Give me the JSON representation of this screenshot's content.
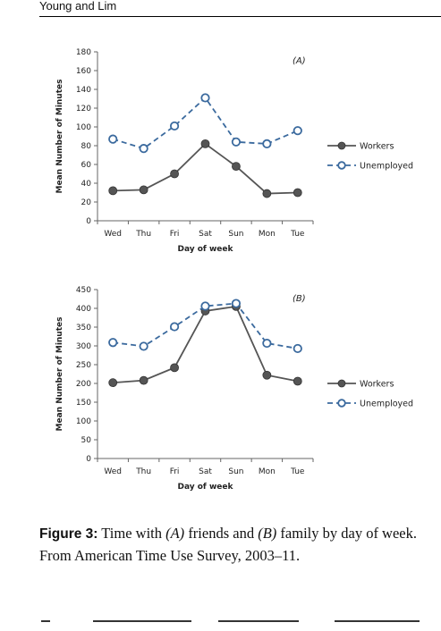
{
  "header": {
    "running_title": "Young and Lim"
  },
  "chart_data": [
    {
      "type": "line",
      "panel_label": "(A)",
      "categories": [
        "Wed",
        "Thu",
        "Fri",
        "Sat",
        "Sun",
        "Mon",
        "Tue"
      ],
      "series": [
        {
          "name": "Workers",
          "values": [
            32,
            33,
            50,
            82,
            58,
            29,
            30
          ],
          "color": "#555555",
          "marker": "filled-circle",
          "line": "solid"
        },
        {
          "name": "Unemployed",
          "values": [
            87,
            77,
            101,
            131,
            84,
            82,
            96
          ],
          "color": "#3b6a9e",
          "marker": "open-circle",
          "line": "dashed"
        }
      ],
      "xlabel": "Day of week",
      "ylabel": "Mean Number of Minutes",
      "ylim": [
        0,
        180
      ],
      "yticks": [
        0,
        20,
        40,
        60,
        80,
        100,
        120,
        140,
        160,
        180
      ],
      "grid": false,
      "legend": "right"
    },
    {
      "type": "line",
      "panel_label": "(B)",
      "categories": [
        "Wed",
        "Thu",
        "Fri",
        "Sat",
        "Sun",
        "Mon",
        "Tue"
      ],
      "series": [
        {
          "name": "Workers",
          "values": [
            202,
            208,
            242,
            393,
            405,
            222,
            206
          ],
          "color": "#555555",
          "marker": "filled-circle",
          "line": "solid"
        },
        {
          "name": "Unemployed",
          "values": [
            309,
            299,
            351,
            406,
            413,
            307,
            293
          ],
          "color": "#3b6a9e",
          "marker": "open-circle",
          "line": "dashed"
        }
      ],
      "xlabel": "Day of week",
      "ylabel": "Mean Number of Minutes",
      "ylim": [
        0,
        450
      ],
      "yticks": [
        0,
        50,
        100,
        150,
        200,
        250,
        300,
        350,
        400,
        450
      ],
      "grid": false,
      "legend": "right"
    }
  ],
  "caption": {
    "label": "Figure 3:",
    "text_parts": [
      "Time with ",
      "(A)",
      " friends and ",
      "(B)",
      " family by day of week. From American Time Use Survey, 2003–11."
    ]
  }
}
